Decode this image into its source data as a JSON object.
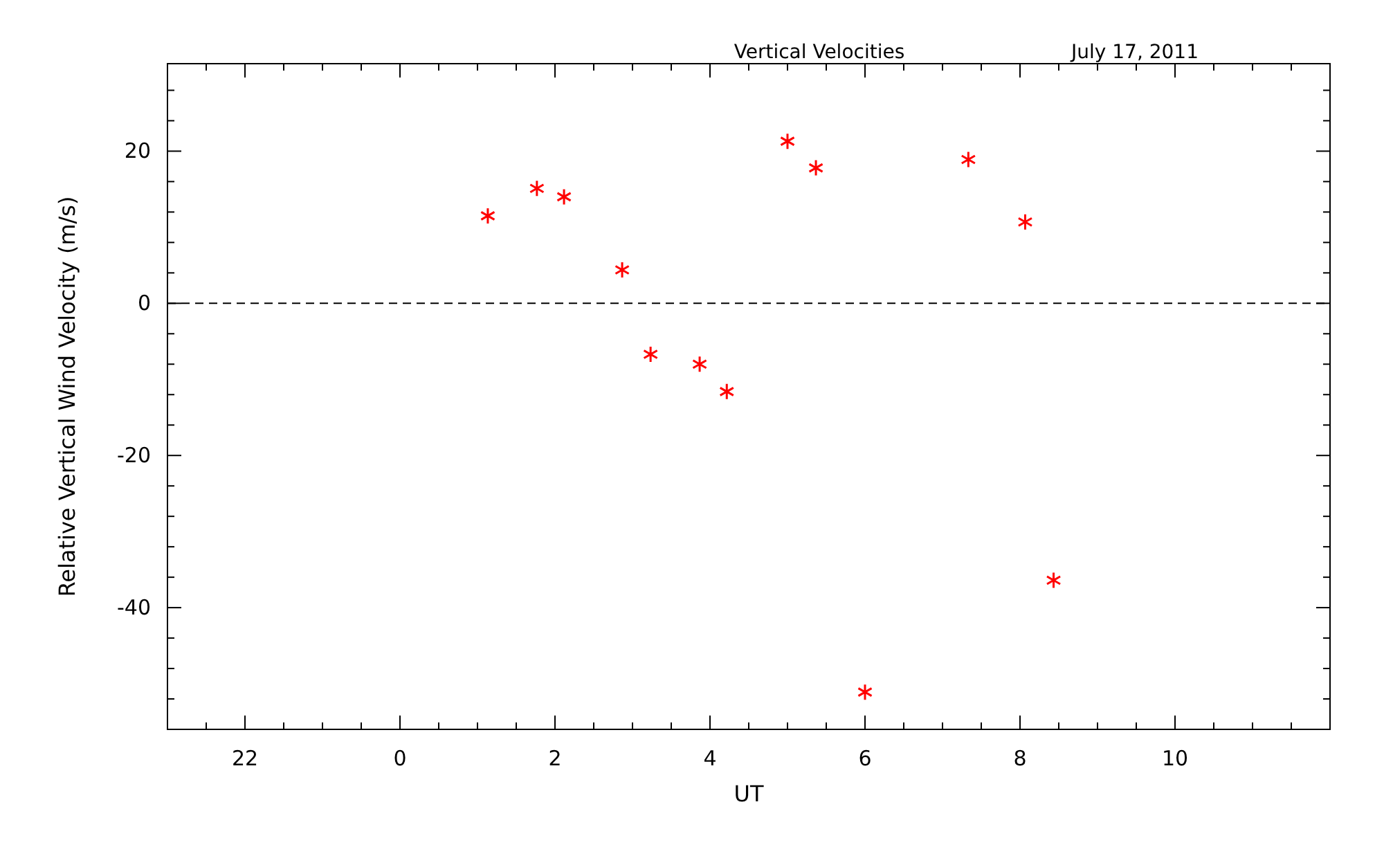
{
  "chart_data": {
    "type": "scatter",
    "title": "Vertical Velocities",
    "subtitle": "July 17, 2011",
    "xlabel": "UT",
    "ylabel": "Relative Vertical Wind Velocity (m/s)",
    "x": [
      "2011-07-17T01:08",
      "2011-07-17T01:46",
      "2011-07-17T02:07",
      "2011-07-17T02:52",
      "2011-07-17T03:14",
      "2011-07-17T03:52",
      "2011-07-17T04:13",
      "2011-07-17T05:00",
      "2011-07-17T05:22",
      "2011-07-17T06:00",
      "2011-07-17T07:20",
      "2011-07-17T08:04",
      "2011-07-17T08:26"
    ],
    "series": [
      {
        "color": "#ff0000",
        "values": [
          11.5,
          15.1,
          14.0,
          4.4,
          -6.7,
          -8.0,
          -11.6,
          21.3,
          17.8,
          -51.1,
          18.9,
          10.7,
          -36.4
        ]
      }
    ],
    "marker": "cross",
    "xlim": [
      "2011-07-16T21:00",
      "2011-07-17T12:00"
    ],
    "ylim": [
      -56,
      31.5
    ],
    "xticks": [
      {
        "value": "2011-07-16T21:30",
        "label": null
      },
      {
        "value": "2011-07-16T22:00",
        "label": "22"
      },
      {
        "value": "2011-07-16T22:30",
        "label": null
      },
      {
        "value": "2011-07-16T23:00",
        "label": null
      },
      {
        "value": "2011-07-16T23:30",
        "label": null
      },
      {
        "value": "2011-07-17T00:00",
        "label": "0"
      },
      {
        "value": "2011-07-17T00:30",
        "label": null
      },
      {
        "value": "2011-07-17T01:00",
        "label": null
      },
      {
        "value": "2011-07-17T01:30",
        "label": null
      },
      {
        "value": "2011-07-17T02:00",
        "label": "2"
      },
      {
        "value": "2011-07-17T02:30",
        "label": null
      },
      {
        "value": "2011-07-17T03:00",
        "label": null
      },
      {
        "value": "2011-07-17T03:30",
        "label": null
      },
      {
        "value": "2011-07-17T04:00",
        "label": "4"
      },
      {
        "value": "2011-07-17T04:30",
        "label": null
      },
      {
        "value": "2011-07-17T05:00",
        "label": null
      },
      {
        "value": "2011-07-17T05:30",
        "label": null
      },
      {
        "value": "2011-07-17T06:00",
        "label": "6"
      },
      {
        "value": "2011-07-17T06:30",
        "label": null
      },
      {
        "value": "2011-07-17T07:00",
        "label": null
      },
      {
        "value": "2011-07-17T07:30",
        "label": null
      },
      {
        "value": "2011-07-17T08:00",
        "label": "8"
      },
      {
        "value": "2011-07-17T08:30",
        "label": null
      },
      {
        "value": "2011-07-17T09:00",
        "label": null
      },
      {
        "value": "2011-07-17T09:30",
        "label": null
      },
      {
        "value": "2011-07-17T10:00",
        "label": "10"
      },
      {
        "value": "2011-07-17T10:30",
        "label": null
      },
      {
        "value": "2011-07-17T11:00",
        "label": null
      },
      {
        "value": "2011-07-17T11:30",
        "label": null
      }
    ],
    "yticks": [
      {
        "value": -52,
        "label": null
      },
      {
        "value": -48,
        "label": null
      },
      {
        "value": -44,
        "label": null
      },
      {
        "value": -40,
        "label": "-40"
      },
      {
        "value": -36,
        "label": null
      },
      {
        "value": -32,
        "label": null
      },
      {
        "value": -28,
        "label": null
      },
      {
        "value": -24,
        "label": null
      },
      {
        "value": -20,
        "label": "-20"
      },
      {
        "value": -16,
        "label": null
      },
      {
        "value": -12,
        "label": null
      },
      {
        "value": -8,
        "label": null
      },
      {
        "value": -4,
        "label": null
      },
      {
        "value": 0,
        "label": "0"
      },
      {
        "value": 4,
        "label": null
      },
      {
        "value": 8,
        "label": null
      },
      {
        "value": 12,
        "label": null
      },
      {
        "value": 16,
        "label": null
      },
      {
        "value": 20,
        "label": "20"
      },
      {
        "value": 24,
        "label": null
      },
      {
        "value": 28,
        "label": null
      }
    ],
    "ref_lines": [
      {
        "axis": "y",
        "value": 0,
        "line_style": "dashed",
        "color": "#000000"
      }
    ],
    "grid": false
  }
}
